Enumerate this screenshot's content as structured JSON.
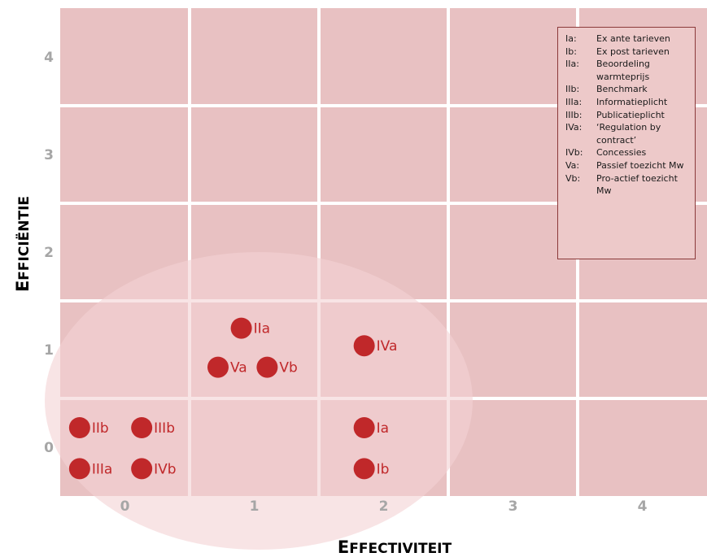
{
  "chart_data": {
    "type": "scatter",
    "xlabel": "Effectiviteit",
    "ylabel": "Efficiëntie",
    "x_ticks": [
      "0",
      "1",
      "2",
      "3",
      "4"
    ],
    "y_ticks": [
      "0",
      "1",
      "2",
      "3",
      "4"
    ],
    "xlim": [
      -0.5,
      4.5
    ],
    "ylim": [
      -0.5,
      4.5
    ],
    "grid": true,
    "legend_position": "top-right",
    "colors": {
      "background": "#e8c1c2",
      "grid": "#ffffff",
      "marker": "#c0282a",
      "ellipse": "#f3d2d3",
      "tick": "#a6a6a6"
    },
    "points": [
      {
        "label": "IIa",
        "x": 0.9,
        "y": 1.22
      },
      {
        "label": "Va",
        "x": 0.72,
        "y": 0.82
      },
      {
        "label": "Vb",
        "x": 1.1,
        "y": 0.82
      },
      {
        "label": "IVa",
        "x": 1.85,
        "y": 1.04
      },
      {
        "label": "IIb",
        "x": -0.35,
        "y": 0.2
      },
      {
        "label": "IIIb",
        "x": 0.13,
        "y": 0.2
      },
      {
        "label": "IIIa",
        "x": -0.35,
        "y": -0.22
      },
      {
        "label": "IVb",
        "x": 0.13,
        "y": -0.22
      },
      {
        "label": "Ia",
        "x": 1.85,
        "y": 0.2
      },
      {
        "label": "Ib",
        "x": 1.85,
        "y": -0.22
      }
    ],
    "legend": [
      {
        "key": "Ia:",
        "desc": "Ex ante tarieven"
      },
      {
        "key": "Ib:",
        "desc": "Ex post tarieven"
      },
      {
        "key": "IIa:",
        "desc": "Beoordeling warmteprijs"
      },
      {
        "key": "IIb:",
        "desc": "Benchmark"
      },
      {
        "key": "IIIa:",
        "desc": "Informatieplicht"
      },
      {
        "key": "IIIb:",
        "desc": "Publicatieplicht"
      },
      {
        "key": "IVa:",
        "desc": "‘Regulation by contract’"
      },
      {
        "key": "IVb:",
        "desc": "Concessies"
      },
      {
        "key": "Va:",
        "desc": "Passief toezicht Mw"
      },
      {
        "key": "Vb:",
        "desc": "Pro-actief toezicht Mw"
      }
    ]
  }
}
